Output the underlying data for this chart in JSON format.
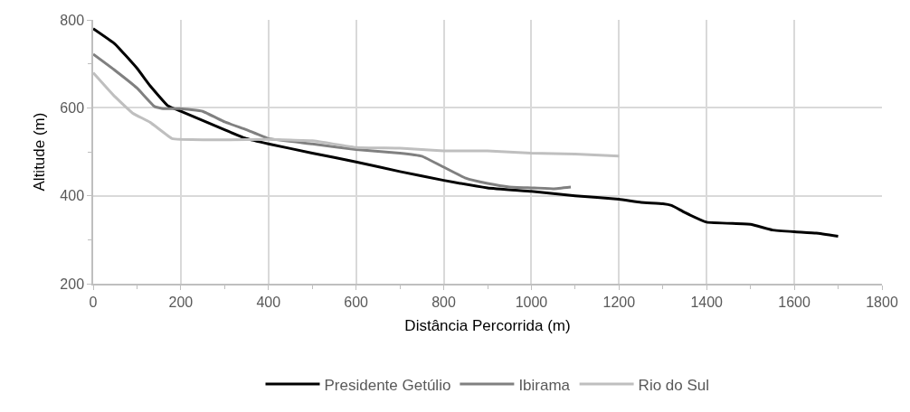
{
  "chart_data": {
    "type": "line",
    "xlabel": "Distância Percorrida (m)",
    "ylabel": "Altitude (m)",
    "xlim": [
      0,
      1800
    ],
    "xticks": [
      0,
      200,
      400,
      600,
      800,
      1000,
      1200,
      1400,
      1600,
      1800
    ],
    "ylim": [
      200,
      800
    ],
    "yticks": [
      200,
      400,
      600,
      800
    ],
    "grid": true,
    "legend": "bottom",
    "marker": "none",
    "line_style": "solid",
    "series": [
      {
        "name": "Presidente Getúlio",
        "color": "#000000",
        "x": [
          0,
          50,
          100,
          130,
          170,
          200,
          300,
          350,
          400,
          500,
          600,
          700,
          800,
          900,
          1000,
          1100,
          1200,
          1250,
          1300,
          1320,
          1350,
          1400,
          1500,
          1550,
          1600,
          1650,
          1700
        ],
        "values": [
          780,
          745,
          690,
          650,
          605,
          592,
          550,
          530,
          518,
          497,
          477,
          455,
          435,
          418,
          410,
          400,
          392,
          385,
          382,
          378,
          362,
          340,
          335,
          322,
          318,
          315,
          308
        ]
      },
      {
        "name": "Ibirama",
        "color": "#808080",
        "x": [
          0,
          50,
          100,
          140,
          160,
          200,
          250,
          300,
          350,
          400,
          500,
          600,
          700,
          750,
          800,
          850,
          900,
          950,
          1000,
          1050,
          1090
        ],
        "values": [
          722,
          685,
          645,
          603,
          598,
          598,
          592,
          568,
          550,
          530,
          518,
          505,
          497,
          490,
          465,
          440,
          428,
          420,
          418,
          416,
          420
        ]
      },
      {
        "name": "Rio do Sul",
        "color": "#bfbfbf",
        "x": [
          0,
          50,
          90,
          130,
          180,
          200,
          300,
          400,
          500,
          600,
          700,
          800,
          900,
          1000,
          1100,
          1200
        ],
        "values": [
          680,
          625,
          588,
          567,
          530,
          528,
          527,
          528,
          525,
          510,
          508,
          502,
          502,
          497,
          495,
          490
        ]
      }
    ]
  }
}
